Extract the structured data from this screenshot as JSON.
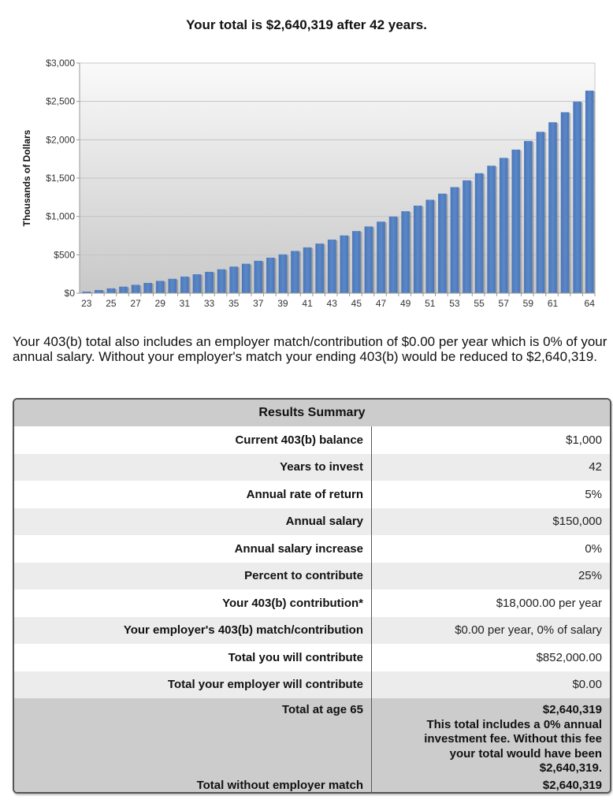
{
  "header": {
    "title": "Your total is $2,640,319 after 42 years."
  },
  "description": "Your 403(b) total also includes an employer match/contribution of $0.00 per year which is 0% of your annual salary. Without your employer's match your ending 403(b) would be reduced to $2,640,319.",
  "chart_data": {
    "type": "bar",
    "title": "",
    "xlabel": "",
    "ylabel": "Thousands of Dollars",
    "ylim": [
      0,
      3000
    ],
    "y_ticks": [
      "$0",
      "$500",
      "$1,000",
      "$1,500",
      "$2,000",
      "$2,500",
      "$3,000"
    ],
    "y_tick_values": [
      0,
      500,
      1000,
      1500,
      2000,
      2500,
      3000
    ],
    "grid": true,
    "categories": [
      23,
      24,
      25,
      26,
      27,
      28,
      29,
      30,
      31,
      32,
      33,
      34,
      35,
      36,
      37,
      38,
      39,
      40,
      41,
      42,
      43,
      44,
      45,
      46,
      47,
      48,
      49,
      50,
      51,
      52,
      53,
      54,
      55,
      56,
      57,
      58,
      59,
      60,
      61,
      62,
      63,
      64
    ],
    "x_tick_labels": [
      "23",
      "25",
      "27",
      "29",
      "31",
      "33",
      "35",
      "37",
      "39",
      "41",
      "43",
      "45",
      "47",
      "49",
      "51",
      "53",
      "55",
      "57",
      "59",
      "61",
      "64"
    ],
    "x_tick_ages": [
      23,
      25,
      27,
      29,
      31,
      33,
      35,
      37,
      39,
      41,
      43,
      45,
      47,
      49,
      51,
      53,
      55,
      57,
      59,
      61,
      64
    ],
    "values": [
      20.5,
      41.0,
      62.6,
      85.2,
      108.9,
      133.8,
      160.0,
      187.4,
      216.3,
      246.5,
      278.3,
      311.8,
      346.8,
      383.6,
      422.2,
      462.8,
      505.4,
      550.1,
      597.1,
      646.4,
      698.2,
      752.6,
      809.7,
      869.6,
      932.7,
      998.7,
      1068.1,
      1141.0,
      1217.5,
      1297.8,
      1382.2,
      1470.7,
      1563.7,
      1661.4,
      1763.8,
      1871.6,
      1984.7,
      2103.4,
      2228.0,
      2358.9,
      2496.3,
      2640.3
    ],
    "bar_color": "#5582c2"
  },
  "summary": {
    "title": "Results Summary",
    "rows": [
      {
        "label": "Current 403(b) balance",
        "value": "$1,000"
      },
      {
        "label": "Years to invest",
        "value": "42"
      },
      {
        "label": "Annual rate of return",
        "value": "5%"
      },
      {
        "label": "Annual salary",
        "value": "$150,000"
      },
      {
        "label": "Annual salary increase",
        "value": "0%"
      },
      {
        "label": "Percent to contribute",
        "value": "25%"
      },
      {
        "label": "Your 403(b) contribution*",
        "value": "$18,000.00 per year"
      },
      {
        "label": "Your employer's 403(b) match/contribution",
        "value": "$0.00 per year, 0% of salary"
      },
      {
        "label": "Total you will contribute",
        "value": "$852,000.00"
      },
      {
        "label": "Total your employer will contribute",
        "value": "$0.00"
      }
    ],
    "total": {
      "label": "Total at age 65",
      "value": "$2,640,319",
      "note": "This total includes a 0% annual investment fee. Without this fee your total would have been $2,640,319."
    },
    "without_match": {
      "label": "Total without employer match",
      "value": "$2,640,319"
    }
  }
}
